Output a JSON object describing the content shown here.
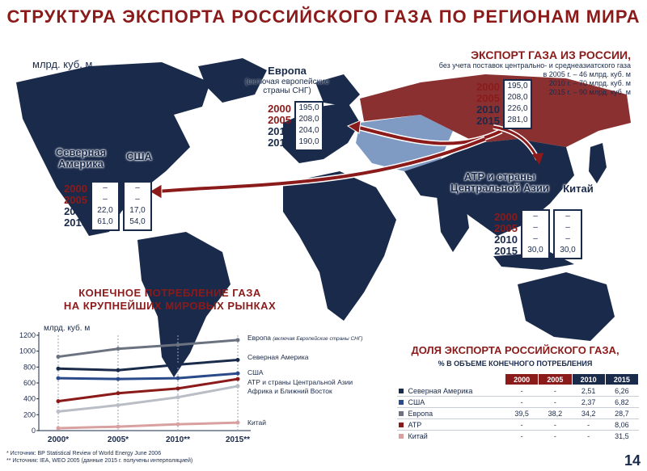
{
  "title": "СТРУКТУРА ЭКСПОРТА РОССИЙСКОГО ГАЗА ПО РЕГИОНАМ МИРА",
  "unit_label": "млрд. куб. м",
  "years": [
    "2000",
    "2005",
    "2010",
    "2015"
  ],
  "regions": {
    "europe": {
      "name": "Европа",
      "sub": "(включая европейские страны СНГ)",
      "values": [
        "195,0",
        "208,0",
        "204,0",
        "190,0"
      ]
    },
    "north_america": {
      "name": "Северная Америка",
      "values": [
        "–",
        "–",
        "22,0",
        "61,0"
      ]
    },
    "usa": {
      "name": "США",
      "values": [
        "–",
        "–",
        "17,0",
        "54,0"
      ]
    },
    "apac": {
      "name": "АТР и страны Центральной Азии",
      "values": [
        "–",
        "–",
        "–",
        "30,0"
      ]
    },
    "china": {
      "name": "Китай",
      "values": [
        "–",
        "–",
        "–",
        "30,0"
      ]
    }
  },
  "export": {
    "heading": "ЭКСПОРТ ГАЗА ИЗ РОССИИ,",
    "sub1": "без учета поставок центрально- и среднеазиатского газа",
    "sub2": "в 2005 г. – 46 млрд. куб. м",
    "sub3": "2010 г. – 70 млрд. куб. м",
    "sub4": "2015 г. – 90 млрд. куб. м",
    "values": [
      "195,0",
      "208,0",
      "226,0",
      "281,0"
    ]
  },
  "consumption_title_1": "КОНЕЧНОЕ ПОТРЕБЛЕНИЕ ГАЗА",
  "consumption_title_2": "НА КРУПНЕЙШИХ МИРОВЫХ РЫНКАХ",
  "chart_data": {
    "type": "line",
    "ylabel": "млрд. куб. м",
    "ylim": [
      0,
      1200
    ],
    "yticks": [
      "0",
      "200",
      "400",
      "600",
      "800",
      "1000",
      "1200"
    ],
    "categories": [
      "2000*",
      "2005*",
      "2010**",
      "2015**"
    ],
    "series": [
      {
        "name": "Европа",
        "name_note": "(включая Европейские страны СНГ)",
        "color": "#6b7280",
        "values": [
          930,
          1030,
          1080,
          1140
        ]
      },
      {
        "name": "Северная Америка",
        "color": "#1a2a4a",
        "values": [
          780,
          760,
          830,
          890
        ]
      },
      {
        "name": "США",
        "color": "#2a4a8a",
        "values": [
          660,
          650,
          660,
          720
        ]
      },
      {
        "name": "АТР и страны Центральной Азии",
        "color": "#8b1a1a",
        "values": [
          370,
          470,
          530,
          650
        ]
      },
      {
        "name": "Африка и Ближний Восток",
        "color": "#b9bdc5",
        "values": [
          240,
          320,
          420,
          560
        ]
      },
      {
        "name": "Китай",
        "color": "#d9a0a0",
        "values": [
          30,
          50,
          80,
          100
        ]
      }
    ],
    "grid": "vertical"
  },
  "share": {
    "title": "ДОЛЯ ЭКСПОРТА РОССИЙСКОГО ГАЗА,",
    "subtitle": "% В ОБЪЕМЕ КОНЕЧНОГО ПОТРЕБЛЕНИЯ",
    "columns": [
      "2000",
      "2005",
      "2010",
      "2015"
    ],
    "column_colors": [
      "#8b1a1a",
      "#8b1a1a",
      "#1a2a4a",
      "#1a2a4a"
    ],
    "rows": [
      {
        "name": "Северная Америка",
        "color": "#1a2a4a",
        "values": [
          "-",
          "-",
          "2,51",
          "6,26"
        ]
      },
      {
        "name": "США",
        "color": "#2a4a8a",
        "values": [
          "-",
          "-",
          "2,37",
          "6,82"
        ]
      },
      {
        "name": "Европа",
        "color": "#6b7280",
        "values": [
          "39,5",
          "38,2",
          "34,2",
          "28,7"
        ]
      },
      {
        "name": "АТР",
        "color": "#8b1a1a",
        "values": [
          "-",
          "-",
          "-",
          "8,06"
        ]
      },
      {
        "name": "Китай",
        "color": "#d9a0a0",
        "values": [
          "-",
          "-",
          "-",
          "31,5"
        ]
      }
    ]
  },
  "sources": {
    "line1": "* Источник: BP Statistical Review of World Energy June 2006",
    "line2": "** Источник: IEA, WEO 2005 (данные 2015 г. получены интерполяцией)"
  },
  "page_number": "14",
  "colors": {
    "navy": "#1a2a4a",
    "russia": "#8b3030",
    "accent": "#8b1a1a",
    "light_blue": "#7f9bc4"
  }
}
